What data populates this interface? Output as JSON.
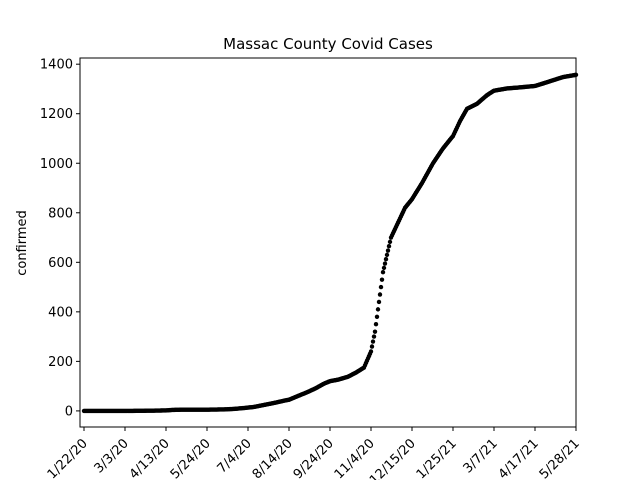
{
  "chart_data": {
    "type": "scatter",
    "title": "Massac County Covid Cases",
    "xlabel": "",
    "ylabel": "confirmed",
    "grid": false,
    "x_ticks": [
      "1/22/20",
      "3/3/20",
      "4/13/20",
      "5/24/20",
      "7/4/20",
      "8/14/20",
      "9/24/20",
      "11/4/20",
      "12/15/20",
      "1/25/21",
      "3/7/21",
      "4/17/21",
      "5/28/21"
    ],
    "y_ticks": [
      "0",
      "200",
      "400",
      "600",
      "800",
      "1000",
      "1200",
      "1400"
    ],
    "xlim": [
      "2020-01-18",
      "2021-05-28"
    ],
    "ylim": [
      -65,
      1425
    ],
    "series": [
      {
        "color": "#000000",
        "points": [
          [
            "2020-01-22",
            0
          ],
          [
            "2020-02-15",
            0
          ],
          [
            "2020-03-10",
            0
          ],
          [
            "2020-04-01",
            1
          ],
          [
            "2020-04-13",
            2
          ],
          [
            "2020-04-20",
            4
          ],
          [
            "2020-05-01",
            5
          ],
          [
            "2020-05-24",
            5
          ],
          [
            "2020-06-10",
            6
          ],
          [
            "2020-06-20",
            8
          ],
          [
            "2020-07-01",
            12
          ],
          [
            "2020-07-10",
            16
          ],
          [
            "2020-07-20",
            24
          ],
          [
            "2020-07-30",
            32
          ],
          [
            "2020-08-10",
            42
          ],
          [
            "2020-08-14",
            45
          ],
          [
            "2020-08-24",
            62
          ],
          [
            "2020-09-01",
            75
          ],
          [
            "2020-09-10",
            92
          ],
          [
            "2020-09-18",
            110
          ],
          [
            "2020-09-24",
            120
          ],
          [
            "2020-10-02",
            126
          ],
          [
            "2020-10-12",
            138
          ],
          [
            "2020-10-20",
            155
          ],
          [
            "2020-10-28",
            175
          ],
          [
            "2020-11-04",
            240
          ],
          [
            "2020-11-08",
            320
          ],
          [
            "2020-11-12",
            440
          ],
          [
            "2020-11-16",
            560
          ],
          [
            "2020-11-20",
            630
          ],
          [
            "2020-11-24",
            700
          ],
          [
            "2020-12-01",
            760
          ],
          [
            "2020-12-08",
            820
          ],
          [
            "2020-12-15",
            855
          ],
          [
            "2020-12-25",
            920
          ],
          [
            "2021-01-05",
            1000
          ],
          [
            "2021-01-15",
            1060
          ],
          [
            "2021-01-25",
            1110
          ],
          [
            "2021-02-01",
            1170
          ],
          [
            "2021-02-08",
            1220
          ],
          [
            "2021-02-18",
            1240
          ],
          [
            "2021-02-28",
            1275
          ],
          [
            "2021-03-07",
            1293
          ],
          [
            "2021-03-20",
            1302
          ],
          [
            "2021-04-01",
            1306
          ],
          [
            "2021-04-17",
            1312
          ],
          [
            "2021-04-25",
            1322
          ],
          [
            "2021-05-05",
            1335
          ],
          [
            "2021-05-15",
            1348
          ],
          [
            "2021-05-28",
            1357
          ]
        ]
      }
    ]
  }
}
